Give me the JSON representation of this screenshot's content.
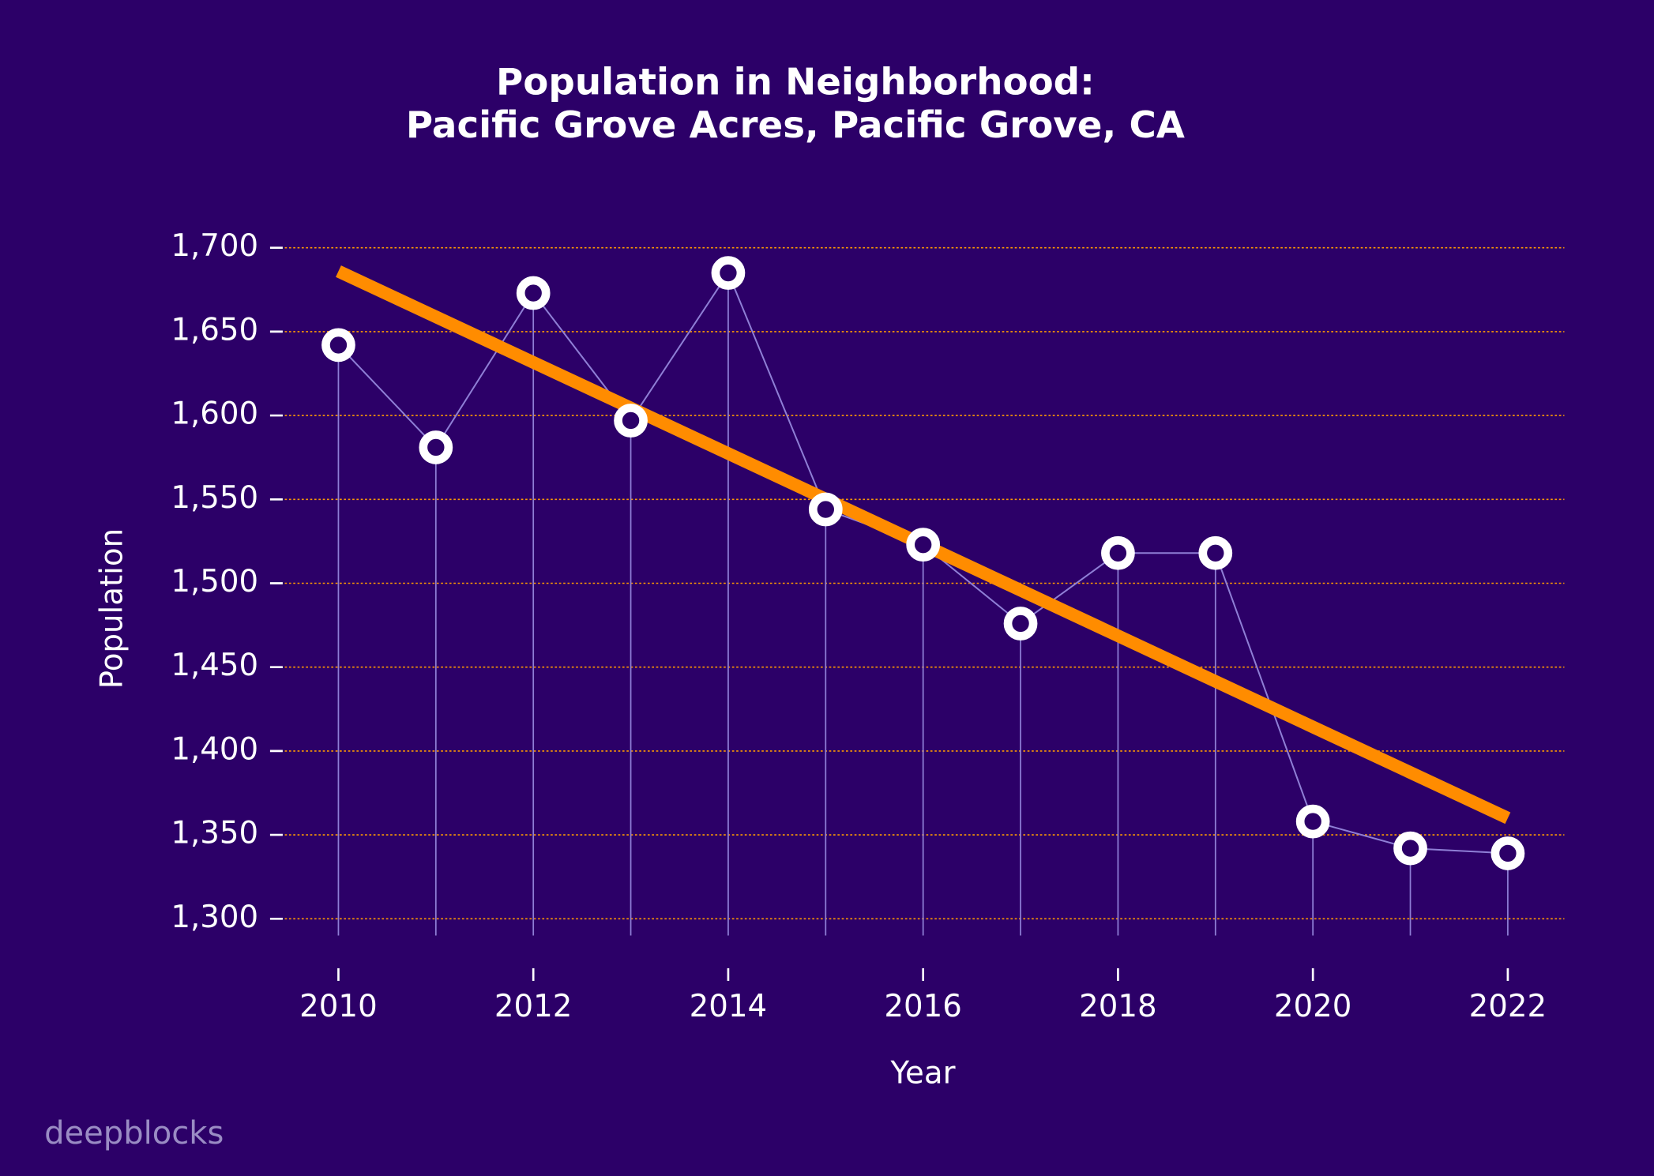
{
  "chart_data": {
    "type": "line",
    "title": [
      "Population in Neighborhood:",
      "Pacific Grove Acres, Pacific Grove, CA"
    ],
    "x_label": "Year",
    "y_label": "Population",
    "watermark": "deepblocks",
    "x": [
      2010,
      2011,
      2012,
      2013,
      2014,
      2015,
      2016,
      2017,
      2018,
      2019,
      2020,
      2021,
      2022
    ],
    "series": [
      {
        "color": "#8f7fd6",
        "values": [
          1642,
          1581,
          1673,
          1597,
          1685,
          1544,
          1523,
          1476,
          1518,
          1518,
          1358,
          1342,
          1339
        ]
      }
    ],
    "trendline": {
      "x": [
        2010,
        2022
      ],
      "values": [
        1686,
        1360
      ],
      "color": "#ff8c00"
    },
    "xlim": [
      2009.45,
      2022.58
    ],
    "ylim": [
      1290,
      1710
    ],
    "xticks": [
      2010,
      2012,
      2014,
      2016,
      2018,
      2020,
      2022
    ],
    "yticks": [
      {
        "value": 1300,
        "label": "1,300"
      },
      {
        "value": 1350,
        "label": "1,350"
      },
      {
        "value": 1400,
        "label": "1,400"
      },
      {
        "value": 1450,
        "label": "1,450"
      },
      {
        "value": 1500,
        "label": "1,500"
      },
      {
        "value": 1550,
        "label": "1,550"
      },
      {
        "value": 1600,
        "label": "1,600"
      },
      {
        "value": 1650,
        "label": "1,650"
      },
      {
        "value": 1700,
        "label": "1,700"
      }
    ],
    "grid": true,
    "grid_color": "#ff9900"
  }
}
